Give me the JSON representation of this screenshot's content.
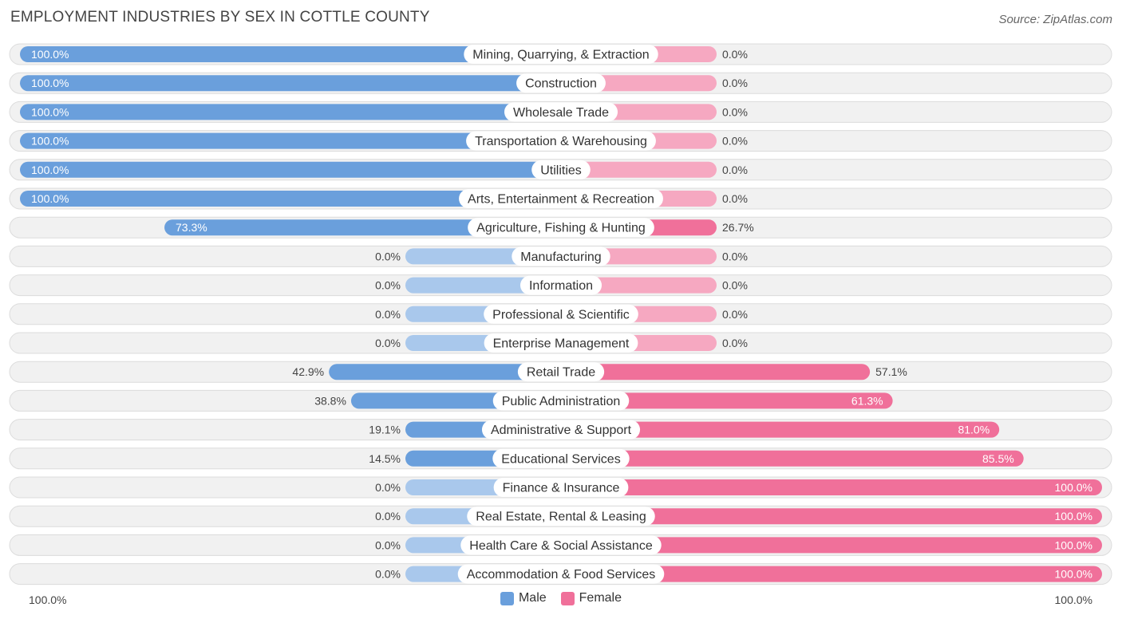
{
  "header": {
    "title": "EMPLOYMENT INDUSTRIES BY SEX IN COTTLE COUNTY",
    "source": "Source: ZipAtlas.com"
  },
  "colors": {
    "male_strong": "#6a9fdc",
    "male_light": "#a9c8ec",
    "female_strong": "#f0709a",
    "female_light": "#f6a8c1",
    "row_bg": "#f1f1f1",
    "row_border": "#dcdcdc"
  },
  "legend": {
    "male": "Male",
    "female": "Female"
  },
  "axis": {
    "left_label": "100.0%",
    "right_label": "100.0%"
  },
  "chart_data": {
    "type": "bar",
    "orientation": "horizontal-diverging",
    "title": "EMPLOYMENT INDUSTRIES BY SEX IN COTTLE COUNTY",
    "xlim": [
      -100,
      100
    ],
    "categories": [
      "Mining, Quarrying, & Extraction",
      "Construction",
      "Wholesale Trade",
      "Transportation & Warehousing",
      "Utilities",
      "Arts, Entertainment & Recreation",
      "Agriculture, Fishing & Hunting",
      "Manufacturing",
      "Information",
      "Professional & Scientific",
      "Enterprise Management",
      "Retail Trade",
      "Public Administration",
      "Administrative & Support",
      "Educational Services",
      "Finance & Insurance",
      "Real Estate, Rental & Leasing",
      "Health Care & Social Assistance",
      "Accommodation & Food Services"
    ],
    "series": [
      {
        "name": "Male",
        "values": [
          100.0,
          100.0,
          100.0,
          100.0,
          100.0,
          100.0,
          73.3,
          0.0,
          0.0,
          0.0,
          0.0,
          42.9,
          38.8,
          19.1,
          14.5,
          0.0,
          0.0,
          0.0,
          0.0
        ]
      },
      {
        "name": "Female",
        "values": [
          0.0,
          0.0,
          0.0,
          0.0,
          0.0,
          0.0,
          26.7,
          0.0,
          0.0,
          0.0,
          0.0,
          57.1,
          61.3,
          81.0,
          85.5,
          100.0,
          100.0,
          100.0,
          100.0
        ]
      }
    ],
    "value_labels": {
      "Male": [
        "100.0%",
        "100.0%",
        "100.0%",
        "100.0%",
        "100.0%",
        "100.0%",
        "73.3%",
        "0.0%",
        "0.0%",
        "0.0%",
        "0.0%",
        "42.9%",
        "38.8%",
        "19.1%",
        "14.5%",
        "0.0%",
        "0.0%",
        "0.0%",
        "0.0%"
      ],
      "Female": [
        "0.0%",
        "0.0%",
        "0.0%",
        "0.0%",
        "0.0%",
        "0.0%",
        "26.7%",
        "0.0%",
        "0.0%",
        "0.0%",
        "0.0%",
        "57.1%",
        "61.3%",
        "81.0%",
        "85.5%",
        "100.0%",
        "100.0%",
        "100.0%",
        "100.0%"
      ]
    },
    "legend": [
      "Male",
      "Female"
    ]
  }
}
